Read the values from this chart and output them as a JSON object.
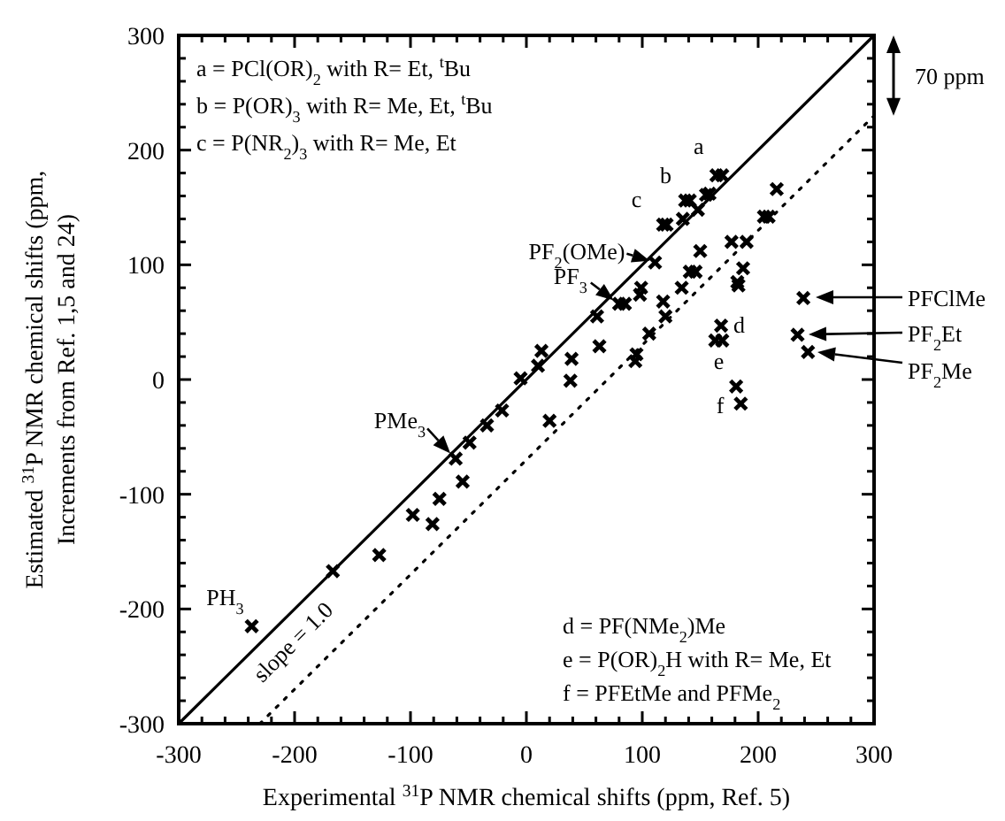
{
  "chart_data": {
    "type": "scatter",
    "xlabel": "Experimental $^{31}$P NMR chemical shifts (ppm, Ref. 5)",
    "ylabel": "Estimated $^{31}$P NMR chemical shifts (ppm,\nIncrements from Ref. 1,5 and 24)",
    "xlim": [
      -300,
      300
    ],
    "ylim": [
      -300,
      300
    ],
    "xticks": [
      -300,
      {
        "value": -280,
        "label": null
      },
      {
        "value": -260,
        "label": null
      },
      {
        "value": -240,
        "label": null
      },
      {
        "value": -220,
        "label": null
      },
      -200,
      {
        "value": -180,
        "label": null
      },
      {
        "value": -160,
        "label": null
      },
      {
        "value": -140,
        "label": null
      },
      {
        "value": -120,
        "label": null
      },
      -100,
      {
        "value": -80,
        "label": null
      },
      {
        "value": -60,
        "label": null
      },
      {
        "value": -40,
        "label": null
      },
      {
        "value": -20,
        "label": null
      },
      0,
      {
        "value": 20,
        "label": null
      },
      {
        "value": 40,
        "label": null
      },
      {
        "value": 60,
        "label": null
      },
      {
        "value": 80,
        "label": null
      },
      100,
      {
        "value": 120,
        "label": null
      },
      {
        "value": 140,
        "label": null
      },
      {
        "value": 160,
        "label": null
      },
      {
        "value": 180,
        "label": null
      },
      200,
      {
        "value": 220,
        "label": null
      },
      {
        "value": 240,
        "label": null
      },
      {
        "value": 260,
        "label": null
      },
      {
        "value": 280,
        "label": null
      },
      300
    ],
    "yticks": [
      -300,
      {
        "value": -280,
        "label": null
      },
      {
        "value": -260,
        "label": null
      },
      {
        "value": -240,
        "label": null
      },
      {
        "value": -220,
        "label": null
      },
      -200,
      {
        "value": -180,
        "label": null
      },
      {
        "value": -160,
        "label": null
      },
      {
        "value": -140,
        "label": null
      },
      {
        "value": -120,
        "label": null
      },
      -100,
      {
        "value": -80,
        "label": null
      },
      {
        "value": -60,
        "label": null
      },
      {
        "value": -40,
        "label": null
      },
      {
        "value": -20,
        "label": null
      },
      0,
      {
        "value": 20,
        "label": null
      },
      {
        "value": 40,
        "label": null
      },
      {
        "value": 60,
        "label": null
      },
      {
        "value": 80,
        "label": null
      },
      100,
      {
        "value": 120,
        "label": null
      },
      {
        "value": 140,
        "label": null
      },
      {
        "value": 160,
        "label": null
      },
      {
        "value": 180,
        "label": null
      },
      200,
      {
        "value": 220,
        "label": null
      },
      {
        "value": 240,
        "label": null
      },
      {
        "value": 260,
        "label": null
      },
      {
        "value": 280,
        "label": null
      },
      300
    ],
    "grid": false,
    "marker": "cross",
    "series": [
      {
        "type": "scatter",
        "color": "#000000",
        "x": [
          -237,
          -167,
          -127,
          -98,
          -81,
          -75,
          -55,
          -61,
          -49,
          -34,
          -21,
          -5,
          20,
          10,
          13,
          39,
          38,
          63,
          61,
          95,
          94,
          106,
          118,
          120,
          80,
          85,
          98,
          99,
          111,
          134,
          141,
          146,
          150,
          177,
          190,
          187,
          182,
          183,
          168,
          163,
          169,
          181,
          185,
          205,
          209,
          216,
          118,
          121,
          135,
          137,
          141,
          148,
          155,
          158,
          164,
          169,
          239,
          234,
          243
        ],
        "values": [
          -215,
          -167,
          -153,
          -118,
          -126,
          -104,
          -89,
          -69,
          -55,
          -40,
          -27,
          1,
          -36,
          12,
          25,
          18,
          -1,
          29,
          55,
          22,
          16,
          40,
          68,
          55,
          66,
          66,
          74,
          80,
          102,
          80,
          94,
          94,
          112,
          120,
          120,
          97,
          85,
          82,
          47,
          34,
          34,
          -6,
          -21,
          142,
          142,
          166,
          135,
          135,
          140,
          156,
          156,
          148,
          161,
          162,
          178,
          178,
          71,
          39,
          24
        ]
      },
      {
        "type": "line",
        "color": "#000000",
        "line_style": "solid",
        "marker": "none",
        "x": [
          -300,
          300
        ],
        "values": [
          -300,
          300
        ]
      },
      {
        "type": "line",
        "color": "#000000",
        "line_style": "dotted",
        "marker": "none",
        "x": [
          -230,
          300
        ],
        "values": [
          -300,
          230
        ]
      }
    ],
    "annotations": [
      "a = PCl(OR)$_{2}$ with R= Et, $^{t}$Bu",
      "b = P(OR)$_{3}$ with R= Me, Et, $^{t}$Bu",
      "c = P(NR$_{2}$)$_{3}$ with R= Me, Et",
      "d = PF(NMe$_{2}$)Me",
      "e = P(OR)$_{2}$H with R= Me, Et",
      "f = PFEtMe and PFMe$_{2}$",
      {
        "text": "a",
        "x": 164,
        "y": 178
      },
      {
        "text": "b",
        "x": 137,
        "y": 156
      },
      {
        "text": "c",
        "x": 118,
        "y": 135
      },
      {
        "text": "PF$_{2}$(OMe)",
        "x": 111,
        "y": 102
      },
      {
        "text": "PF$_{3}$",
        "x": 80,
        "y": 66
      },
      {
        "text": "PMe$_{3}$",
        "x": -61,
        "y": -69
      },
      {
        "text": "PH$_{3}$",
        "x": -237,
        "y": -215
      },
      {
        "text": "d",
        "x": 168,
        "y": 47
      },
      {
        "text": "e",
        "x": 163,
        "y": 34
      },
      {
        "text": "f",
        "x": 181,
        "y": -6
      },
      {
        "text": "slope = 1.0",
        "x": -215,
        "y": -215
      },
      "PFClMe",
      "PF$_{2}$Et",
      "PF$_{2}$Me",
      "70 ppm"
    ]
  }
}
